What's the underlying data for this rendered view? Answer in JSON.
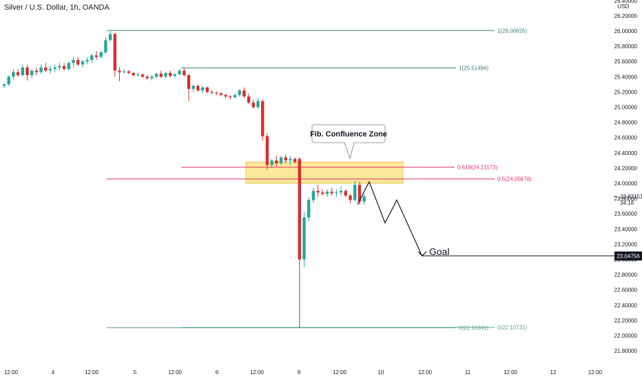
{
  "chart_data": {
    "type": "candlestick",
    "title": "Silver / U.S. Dollar, 1h, OANDA",
    "currency": "USD",
    "y_axis": {
      "min": 21.8,
      "max": 26.4,
      "ticks": [
        "26.40000",
        "26.20000",
        "26.00000",
        "25.80000",
        "25.60000",
        "25.40000",
        "25.20000",
        "25.00000",
        "24.80000",
        "24.60000",
        "24.40000",
        "24.20000",
        "24.00000",
        "23.80000",
        "23.60000",
        "23.40000",
        "23.20000",
        "23.00000",
        "22.80000",
        "22.60000",
        "22.40000",
        "22.20000",
        "22.00000",
        "21.80000"
      ]
    },
    "x_axis": {
      "ticks": [
        "12:00",
        "4",
        "12:00",
        "5",
        "12:00",
        "6",
        "12:00",
        "9",
        "12:00",
        "10",
        "12:00",
        "11",
        "12:00",
        "12",
        "12:00"
      ]
    },
    "last_price": {
      "value": "23.83151",
      "countdown": "34:18"
    },
    "candles": [
      [
        25.28,
        25.32,
        25.25,
        25.3
      ],
      [
        25.3,
        25.42,
        25.28,
        25.4
      ],
      [
        25.4,
        25.5,
        25.36,
        25.46
      ],
      [
        25.46,
        25.5,
        25.4,
        25.42
      ],
      [
        25.42,
        25.56,
        25.4,
        25.52
      ],
      [
        25.52,
        25.56,
        25.35,
        25.42
      ],
      [
        25.42,
        25.5,
        25.38,
        25.48
      ],
      [
        25.48,
        25.52,
        25.42,
        25.46
      ],
      [
        25.46,
        25.56,
        25.44,
        25.52
      ],
      [
        25.52,
        25.58,
        25.46,
        25.48
      ],
      [
        25.48,
        25.54,
        25.44,
        25.5
      ],
      [
        25.5,
        25.56,
        25.46,
        25.52
      ],
      [
        25.52,
        25.58,
        25.48,
        25.54
      ],
      [
        25.54,
        25.58,
        25.48,
        25.5
      ],
      [
        25.5,
        25.6,
        25.48,
        25.58
      ],
      [
        25.58,
        25.66,
        25.52,
        25.62
      ],
      [
        25.62,
        25.66,
        25.54,
        25.56
      ],
      [
        25.56,
        25.62,
        25.52,
        25.6
      ],
      [
        25.6,
        25.66,
        25.56,
        25.62
      ],
      [
        25.62,
        25.7,
        25.58,
        25.68
      ],
      [
        25.68,
        25.74,
        25.62,
        25.66
      ],
      [
        25.66,
        25.74,
        25.64,
        25.72
      ],
      [
        25.72,
        25.92,
        25.7,
        25.88
      ],
      [
        25.88,
        26.0,
        25.86,
        25.96
      ],
      [
        25.96,
        25.98,
        25.4,
        25.48
      ],
      [
        25.48,
        25.52,
        25.34,
        25.46
      ],
      [
        25.46,
        25.5,
        25.44,
        25.47
      ],
      [
        25.47,
        25.49,
        25.43,
        25.45
      ],
      [
        25.45,
        25.46,
        25.4,
        25.42
      ],
      [
        25.42,
        25.45,
        25.4,
        25.43
      ],
      [
        25.43,
        25.44,
        25.38,
        25.4
      ],
      [
        25.4,
        25.42,
        25.36,
        25.38
      ],
      [
        25.38,
        25.42,
        25.35,
        25.4
      ],
      [
        25.4,
        25.45,
        25.38,
        25.44
      ],
      [
        25.44,
        25.48,
        25.38,
        25.4
      ],
      [
        25.4,
        25.46,
        25.38,
        25.45
      ],
      [
        25.45,
        25.48,
        25.39,
        25.41
      ],
      [
        25.41,
        25.45,
        25.38,
        25.43
      ],
      [
        25.43,
        25.5,
        25.42,
        25.48
      ],
      [
        25.48,
        25.51,
        25.4,
        25.42
      ],
      [
        25.42,
        25.44,
        25.08,
        25.24
      ],
      [
        25.24,
        25.3,
        25.2,
        25.28
      ],
      [
        25.28,
        25.3,
        25.2,
        25.22
      ],
      [
        25.22,
        25.28,
        25.18,
        25.26
      ],
      [
        25.26,
        25.27,
        25.18,
        25.2
      ],
      [
        25.2,
        25.22,
        25.17,
        25.19
      ],
      [
        25.19,
        25.21,
        25.16,
        25.18
      ],
      [
        25.18,
        25.2,
        25.14,
        25.16
      ],
      [
        25.16,
        25.18,
        25.12,
        25.14
      ],
      [
        25.14,
        25.16,
        25.1,
        25.13
      ],
      [
        25.13,
        25.18,
        25.11,
        25.16
      ],
      [
        25.16,
        25.24,
        25.14,
        25.22
      ],
      [
        25.22,
        25.26,
        25.12,
        25.14
      ],
      [
        25.14,
        25.18,
        25.04,
        25.06
      ],
      [
        25.06,
        25.1,
        24.98,
        25.0
      ],
      [
        25.0,
        25.12,
        24.98,
        25.08
      ],
      [
        25.08,
        25.1,
        24.56,
        24.62
      ],
      [
        24.62,
        24.66,
        24.18,
        24.24
      ],
      [
        24.24,
        24.32,
        24.2,
        24.3
      ],
      [
        24.3,
        24.36,
        24.22,
        24.26
      ],
      [
        24.26,
        24.36,
        24.24,
        24.34
      ],
      [
        24.34,
        24.38,
        24.26,
        24.3
      ],
      [
        24.3,
        24.36,
        24.24,
        24.32
      ],
      [
        24.32,
        24.34,
        24.26,
        24.28
      ],
      [
        24.32,
        24.34,
        22.1,
        23.0
      ],
      [
        23.0,
        23.62,
        22.9,
        23.55
      ],
      [
        23.55,
        23.82,
        23.5,
        23.78
      ],
      [
        23.78,
        23.94,
        23.74,
        23.9
      ],
      [
        23.9,
        23.98,
        23.82,
        23.88
      ],
      [
        23.88,
        23.92,
        23.84,
        23.86
      ],
      [
        23.86,
        23.92,
        23.82,
        23.89
      ],
      [
        23.89,
        23.94,
        23.84,
        23.87
      ],
      [
        23.87,
        23.92,
        23.82,
        23.88
      ],
      [
        23.88,
        23.96,
        23.84,
        23.9
      ],
      [
        23.9,
        23.92,
        23.82,
        23.84
      ],
      [
        23.84,
        23.86,
        23.74,
        23.78
      ],
      [
        23.78,
        24.04,
        23.76,
        23.98
      ],
      [
        23.98,
        24.02,
        23.72,
        23.76
      ],
      [
        23.76,
        23.86,
        23.72,
        23.83
      ]
    ],
    "fib_levels": [
      {
        "label": "1(26.00625)",
        "price": 26.00625,
        "color": "#3d7a7a"
      },
      {
        "label": "1(25.51494)",
        "price": 25.51494,
        "color": "#3d7a7a"
      },
      {
        "label": "0.618(24.21173)",
        "price": 24.21173,
        "color": "#e0306a"
      },
      {
        "label": "0.5(24.05678)",
        "price": 24.05678,
        "color": "#e0306a"
      },
      {
        "label": "0(22.10341)",
        "price": 22.10341,
        "color": "#5aa596"
      },
      {
        "label": "0(22.10731)",
        "price": 22.10731,
        "color": "#5aa596"
      }
    ],
    "confluence_zone": {
      "top": 24.28,
      "bottom": 24.0,
      "color": "#fbe07a"
    },
    "callout": "Fib. Confluence Zone",
    "projection": [
      [
        23.72,
        0
      ],
      [
        24.02,
        1
      ],
      [
        23.48,
        2
      ],
      [
        23.78,
        3
      ],
      [
        23.04,
        4
      ]
    ],
    "goal": {
      "label": "Goal",
      "price": "23.04756",
      "value": 23.04756
    },
    "colors": {
      "up": "#26a69a",
      "down": "#d32f2f",
      "line": "#131722",
      "badge": "#131722"
    }
  }
}
